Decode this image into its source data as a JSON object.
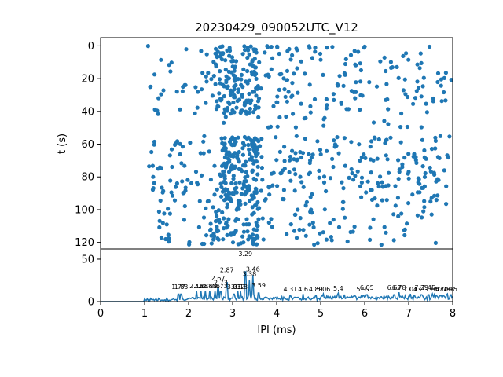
{
  "chart_data": [
    {
      "type": "scatter",
      "title": "20230429_090052UTC_V12",
      "xlabel": "",
      "ylabel": "t (s)",
      "xlim": [
        0,
        8
      ],
      "ylim": [
        124,
        -5
      ],
      "y_inverted": true,
      "y_ticks": [
        0,
        20,
        40,
        60,
        80,
        100,
        120
      ],
      "x_ticks_shown": false,
      "color": "#1f77b4",
      "marker": "filled-circle",
      "note": "raster of inter-pulse intervals over time; dense bands near t=0-40 s and t=60-120 s",
      "bands": [
        {
          "t_range": [
            0,
            42
          ],
          "x_range": [
            1.0,
            8.0
          ],
          "count": 330,
          "dense_x": [
            [
              2.6,
              3.6
            ]
          ]
        },
        {
          "t_range": [
            43,
            50
          ],
          "x_range": [
            2.4,
            7.5
          ],
          "count": 20,
          "dense_x": []
        },
        {
          "t_range": [
            55,
            95
          ],
          "x_range": [
            1.1,
            8.0
          ],
          "count": 420,
          "dense_x": [
            [
              2.7,
              3.6
            ]
          ]
        },
        {
          "t_range": [
            95,
            122
          ],
          "x_range": [
            1.3,
            7.9
          ],
          "count": 180,
          "dense_x": [
            [
              2.5,
              3.6
            ]
          ]
        }
      ]
    },
    {
      "type": "line",
      "xlabel": "IPI (ms)",
      "ylabel": "",
      "xlim": [
        0,
        8
      ],
      "ylim": [
        0,
        62
      ],
      "x_ticks": [
        0,
        1,
        2,
        3,
        4,
        5,
        6,
        7,
        8
      ],
      "y_ticks": [
        0,
        50
      ],
      "color": "#1f77b4",
      "peaks": [
        {
          "x": 1.77,
          "y": 13,
          "label": "1.77"
        },
        {
          "x": 1.83,
          "y": 13,
          "label": "1.83"
        },
        {
          "x": 2.18,
          "y": 14,
          "label": "2.18"
        },
        {
          "x": 2.28,
          "y": 14,
          "label": "2.28"
        },
        {
          "x": 2.38,
          "y": 14,
          "label": "2.38"
        },
        {
          "x": 2.48,
          "y": 14,
          "label": "2.48"
        },
        {
          "x": 2.6,
          "y": 14,
          "label": "2.6"
        },
        {
          "x": 2.73,
          "y": 14,
          "label": "2.73"
        },
        {
          "x": 2.67,
          "y": 23,
          "label": "2.67"
        },
        {
          "x": 2.73,
          "y": 18,
          "label": "2.73"
        },
        {
          "x": 2.87,
          "y": 33,
          "label": "2.87"
        },
        {
          "x": 3.03,
          "y": 13,
          "label": "3.03"
        },
        {
          "x": 3.12,
          "y": 13,
          "label": "3.12"
        },
        {
          "x": 3.18,
          "y": 13,
          "label": "3.18"
        },
        {
          "x": 3.29,
          "y": 52,
          "label": "3.29"
        },
        {
          "x": 3.38,
          "y": 28,
          "label": "3.38"
        },
        {
          "x": 3.46,
          "y": 34,
          "label": "3.46"
        },
        {
          "x": 3.59,
          "y": 15,
          "label": "3.59"
        },
        {
          "x": 4.31,
          "y": 10,
          "label": "4.31"
        },
        {
          "x": 4.6,
          "y": 10,
          "label": "4.6"
        },
        {
          "x": 4.89,
          "y": 10,
          "label": "4.89"
        },
        {
          "x": 5.06,
          "y": 10,
          "label": "5.06"
        },
        {
          "x": 5.4,
          "y": 11,
          "label": "5.4"
        },
        {
          "x": 5.97,
          "y": 10,
          "label": "5.97"
        },
        {
          "x": 6.05,
          "y": 12,
          "label": "6.05"
        },
        {
          "x": 6.67,
          "y": 12,
          "label": "6.67"
        },
        {
          "x": 6.78,
          "y": 12,
          "label": "6.78"
        },
        {
          "x": 7.04,
          "y": 10,
          "label": "7.04"
        },
        {
          "x": 7.13,
          "y": 10,
          "label": "7.13"
        },
        {
          "x": 7.29,
          "y": 12,
          "label": "7.29"
        },
        {
          "x": 7.45,
          "y": 12,
          "label": "7.45"
        },
        {
          "x": 7.54,
          "y": 10,
          "label": "7.54"
        },
        {
          "x": 7.63,
          "y": 10,
          "label": "7.63"
        },
        {
          "x": 7.71,
          "y": 10,
          "label": "7.71"
        },
        {
          "x": 7.79,
          "y": 10,
          "label": "7.79"
        },
        {
          "x": 7.88,
          "y": 10,
          "label": "7.88"
        },
        {
          "x": 7.95,
          "y": 10,
          "label": "7.95"
        }
      ],
      "baseline_onset_x": 1.0,
      "baseline_noise_y": 3
    }
  ]
}
